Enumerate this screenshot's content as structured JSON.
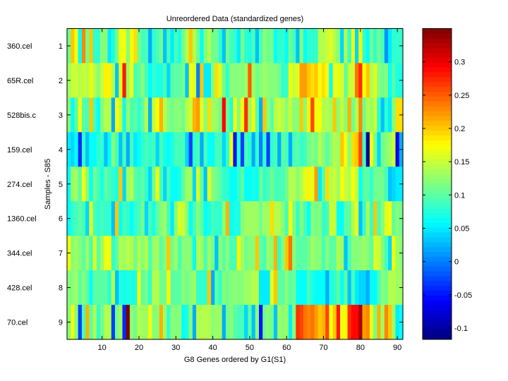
{
  "chart_data": {
    "type": "heatmap",
    "title": "Unreordered Data (standardized genes)",
    "xlabel": "G8 Genes ordered by G1(S1)",
    "ylabel": "Samples - S85",
    "colormap": "jet",
    "x_range": [
      1,
      91
    ],
    "x_ticks": [
      10,
      20,
      30,
      40,
      50,
      60,
      70,
      80,
      90
    ],
    "y_ticks": [
      1,
      2,
      3,
      4,
      5,
      6,
      7,
      8,
      9
    ],
    "row_labels": [
      "360.cel",
      "65R.cel",
      "528bis.c",
      "159.cel",
      "274.cel",
      "1360.cel",
      "344.cel",
      "428.cel",
      "70.cel"
    ],
    "color_range": [
      -0.117,
      0.35
    ],
    "colorbar_ticks": [
      "0.3",
      "0.25",
      "0.2",
      "0.15",
      "0.1",
      "0.05",
      "0",
      "-0.05",
      "-0.1"
    ],
    "colorbar_tick_values": [
      0.3,
      0.25,
      0.2,
      0.15,
      0.1,
      0.05,
      0,
      -0.05,
      -0.1
    ],
    "rows": [
      [
        0.11,
        0.2,
        0.17,
        0.06,
        0.23,
        0.11,
        0.2,
        0.08,
        0.08,
        0.12,
        0.12,
        0.05,
        0.07,
        0.11,
        0.17,
        0.17,
        0.12,
        0.17,
        0.19,
        0.11,
        0.09,
        0.09,
        0.02,
        0.08,
        0.09,
        0.11,
        0.03,
        0.09,
        0.05,
        0.09,
        0.07,
        0.11,
        0.14,
        0.2,
        0.14,
        0.11,
        0.06,
        0.12,
        0.14,
        0.11,
        0.11,
        0.08,
        0.03,
        0.11,
        0.09,
        0.08,
        0.05,
        0.11,
        0.08,
        0.07,
        0.09,
        0.03,
        0.09,
        0.12,
        0.11,
        0.11,
        0.06,
        0.08,
        0.08,
        0.06,
        0.11,
        0.09,
        0.03,
        0.12,
        0.06,
        0.08,
        0.08,
        0.08,
        0.14,
        0.14,
        0.15,
        0.16,
        0.14,
        0.12,
        0.04,
        0.14,
        0.08,
        0.17,
        0.04,
        0.17,
        0.08,
        0.06,
        0.11,
        0.08,
        0.11,
        0.09,
        0.01,
        0.05,
        0.08,
        0.08,
        0.08
      ],
      [
        0.13,
        0.15,
        0.15,
        0.14,
        0.15,
        0.14,
        0.17,
        0.14,
        0.12,
        0.15,
        0.18,
        0.18,
        0.14,
        0.03,
        0.16,
        0.28,
        0.13,
        0.17,
        0.09,
        0.1,
        0.12,
        0.09,
        0.06,
        0.08,
        0.07,
        0.07,
        0.09,
        0.04,
        0.1,
        0.1,
        0.1,
        0.11,
        0.03,
        0.17,
        0.16,
        0.0,
        0.2,
        0.05,
        0.05,
        0.12,
        0.19,
        0.16,
        0.11,
        0.08,
        0.12,
        0.12,
        0.12,
        0.12,
        0.13,
        0.25,
        0.13,
        0.11,
        0.12,
        0.13,
        0.12,
        0.12,
        0.12,
        0.11,
        0.08,
        0.08,
        0.17,
        0.15,
        0.16,
        0.22,
        0.22,
        0.2,
        0.19,
        0.2,
        0.17,
        0.19,
        0.17,
        0.06,
        0.17,
        0.16,
        0.16,
        0.1,
        0.15,
        0.15,
        0.24,
        0.27,
        0.17,
        0.2,
        0.14,
        0.16,
        0.12,
        0.11,
        0.12,
        0.06,
        0.1,
        0.07,
        0.07
      ],
      [
        0.12,
        0.06,
        0.1,
        0.17,
        0.1,
        0.09,
        0.2,
        0.09,
        0.06,
        0.12,
        0.14,
        0.14,
        0.02,
        0.17,
        0.15,
        0.06,
        0.13,
        0.09,
        0.1,
        0.08,
        0.1,
        0.14,
        0.02,
        0.15,
        0.17,
        0.21,
        0.14,
        0.12,
        0.11,
        0.12,
        0.12,
        0.11,
        0.14,
        0.15,
        0.21,
        0.22,
        0.16,
        0.12,
        0.19,
        0.13,
        0.13,
        0.11,
        0.29,
        0.11,
        0.07,
        0.17,
        0.12,
        0.17,
        0.27,
        0.13,
        0.17,
        0.1,
        0.02,
        0.2,
        0.12,
        0.1,
        0.14,
        0.15,
        0.14,
        0.12,
        0.15,
        0.12,
        0.12,
        0.2,
        0.12,
        0.18,
        0.26,
        0.17,
        0.17,
        0.14,
        0.14,
        0.13,
        0.2,
        0.12,
        0.15,
        0.12,
        0.21,
        0.11,
        0.14,
        0.23,
        0.11,
        0.14,
        0.13,
        0.15,
        0.08,
        0.03,
        0.08,
        0.05,
        0.12,
        0.19,
        0.19
      ],
      [
        0.05,
        0.04,
        0.06,
        -0.04,
        0.08,
        0.03,
        0.06,
        0.06,
        0.08,
        0.08,
        0.03,
        0.06,
        0.12,
        0.09,
        0.03,
        0.09,
        0.02,
        0.09,
        0.05,
        0.06,
        0.08,
        0.09,
        0.08,
        0.09,
        0.04,
        0.09,
        0.07,
        0.06,
        0.07,
        0.09,
        0.09,
        0.09,
        0.04,
        -0.03,
        0.08,
        0.09,
        0.02,
        0.09,
        0.06,
        0.06,
        0.09,
        0.09,
        0.04,
        0.08,
        0.17,
        -0.05,
        0.08,
        -0.03,
        0.09,
        0.08,
        0.02,
        0.08,
        0.0,
        0.08,
        -0.03,
        0.08,
        0.09,
        0.02,
        0.1,
        0.09,
        0.02,
        0.09,
        0.1,
        0.08,
        0.09,
        0.11,
        0.12,
        0.11,
        0.14,
        0.12,
        0.1,
        0.12,
        0.14,
        0.13,
        0.2,
        0.17,
        0.12,
        0.19,
        0.2,
        0.26,
        0.09,
        -0.1,
        0.17,
        0.11,
        0.04,
        0.11,
        0.12,
        0.13,
        0.15,
        -0.07,
        0.02
      ],
      [
        0.06,
        0.13,
        0.13,
        0.1,
        0.17,
        0.12,
        0.06,
        0.11,
        0.09,
        0.07,
        0.1,
        0.09,
        0.08,
        0.07,
        0.2,
        0.04,
        0.13,
        0.14,
        0.1,
        0.09,
        0.1,
        0.08,
        0.04,
        0.11,
        0.17,
        0.09,
        0.04,
        0.09,
        0.06,
        0.06,
        0.07,
        0.1,
        0.13,
        0.13,
        0.04,
        0.16,
        0.1,
        0.03,
        0.16,
        0.12,
        0.11,
        0.1,
        0.08,
        0.08,
        0.06,
        0.06,
        0.08,
        0.1,
        0.06,
        0.06,
        0.07,
        0.06,
        0.11,
        0.08,
        0.09,
        0.11,
        0.09,
        0.09,
        0.09,
        0.11,
        0.14,
        0.14,
        0.12,
        0.14,
        0.16,
        0.18,
        0.16,
        0.22,
        0.05,
        0.1,
        0.19,
        0.14,
        0.15,
        0.13,
        0.17,
        0.15,
        0.14,
        0.17,
        0.15,
        0.06,
        0.1,
        0.1,
        0.08,
        0.11,
        0.11,
        0.11,
        0.09,
        0.03,
        0.04,
        0.05,
        0.05
      ],
      [
        0.06,
        0.08,
        0.09,
        0.1,
        0.09,
        0.04,
        0.16,
        0.09,
        0.08,
        0.09,
        0.08,
        0.08,
        0.03,
        0.2,
        0.06,
        0.09,
        0.08,
        0.06,
        0.08,
        0.09,
        0.11,
        0.04,
        0.09,
        0.07,
        0.1,
        0.12,
        0.13,
        0.09,
        0.05,
        0.12,
        0.16,
        0.15,
        0.12,
        0.06,
        0.09,
        0.12,
        0.1,
        0.06,
        0.07,
        0.09,
        0.08,
        0.08,
        0.12,
        0.21,
        0.06,
        0.07,
        0.07,
        0.12,
        0.13,
        0.13,
        0.13,
        0.13,
        0.11,
        0.13,
        0.13,
        0.19,
        0.14,
        0.14,
        0.12,
        0.09,
        0.17,
        0.12,
        0.08,
        0.12,
        0.09,
        0.06,
        0.12,
        0.11,
        0.12,
        0.08,
        0.09,
        0.15,
        0.15,
        0.06,
        0.06,
        0.1,
        0.1,
        0.14,
        0.16,
        0.03,
        0.08,
        0.14,
        0.08,
        0.2,
        0.09,
        0.12,
        0.16,
        0.17,
        0.1,
        0.12,
        0.11
      ],
      [
        0.17,
        0.12,
        0.13,
        0.12,
        0.1,
        0.13,
        0.09,
        0.16,
        0.1,
        0.13,
        0.17,
        0.17,
        0.08,
        0.1,
        0.14,
        0.13,
        0.14,
        0.14,
        0.11,
        0.14,
        0.12,
        0.14,
        0.09,
        0.13,
        0.13,
        0.1,
        0.12,
        0.2,
        0.11,
        0.13,
        0.09,
        0.12,
        0.12,
        0.12,
        0.06,
        0.14,
        0.13,
        0.09,
        0.13,
        0.11,
        0.03,
        0.12,
        0.1,
        0.12,
        0.09,
        0.09,
        0.18,
        0.13,
        0.11,
        0.12,
        0.12,
        0.2,
        0.1,
        0.09,
        0.13,
        0.12,
        0.21,
        0.08,
        0.12,
        0.2,
        0.24,
        0.12,
        0.1,
        0.1,
        0.1,
        0.11,
        0.13,
        0.12,
        0.12,
        0.09,
        0.12,
        0.1,
        0.1,
        0.14,
        0.13,
        0.03,
        0.09,
        0.12,
        0.12,
        0.12,
        0.13,
        0.12,
        0.1,
        0.16,
        0.15,
        0.12,
        0.09,
        0.04,
        0.17,
        0.13,
        0.12
      ],
      [
        0.12,
        0.12,
        0.13,
        0.1,
        0.12,
        0.1,
        0.06,
        0.1,
        0.1,
        0.1,
        0.1,
        0.08,
        0.14,
        0.03,
        0.07,
        0.07,
        0.07,
        0.07,
        0.07,
        0.17,
        0.1,
        0.11,
        0.08,
        0.14,
        0.14,
        0.11,
        0.11,
        0.18,
        0.1,
        0.1,
        0.1,
        0.12,
        0.11,
        0.12,
        0.13,
        0.08,
        0.08,
        0.08,
        0.2,
        0.02,
        0.1,
        0.08,
        0.12,
        0.11,
        0.12,
        0.12,
        0.12,
        0.12,
        0.13,
        0.13,
        0.14,
        0.14,
        0.05,
        0.05,
        0.05,
        0.16,
        0.2,
        0.1,
        0.1,
        0.12,
        0.1,
        0.11,
        0.06,
        0.06,
        0.06,
        0.09,
        0.07,
        0.06,
        0.06,
        0.06,
        0.02,
        0.07,
        0.08,
        0.1,
        0.06,
        0.1,
        0.03,
        0.09,
        0.05,
        0.04,
        0.04,
        0.02,
        0.06,
        0.06,
        0.09,
        0.12,
        0.11,
        0.14,
        0.14,
        0.13,
        0.13
      ],
      [
        0.12,
        0.17,
        0.12,
        -0.03,
        0.09,
        0.21,
        0.1,
        0.14,
        0.08,
        0.11,
        0.14,
        0.14,
        -0.03,
        0.11,
        0.13,
        -0.04,
        0.35,
        0.12,
        0.11,
        0.14,
        0.13,
        0.13,
        0.17,
        0.12,
        0.12,
        0.21,
        0.13,
        0.08,
        0.12,
        0.12,
        0.12,
        0.06,
        0.07,
        0.12,
        0.02,
        0.14,
        0.14,
        0.14,
        0.14,
        0.12,
        0.13,
        0.13,
        0.02,
        0.11,
        0.12,
        0.1,
        0.09,
        0.09,
        0.04,
        0.1,
        0.03,
        0.12,
        -0.05,
        0.11,
        0.12,
        0.11,
        0.03,
        0.13,
        0.12,
        0.13,
        0.05,
        0.12,
        0.27,
        0.26,
        0.24,
        0.23,
        0.24,
        0.22,
        0.2,
        0.21,
        0.26,
        0.17,
        0.2,
        0.28,
        0.17,
        0.17,
        0.27,
        0.29,
        0.29,
        0.33,
        0.22,
        0.23,
        0.17,
        0.11,
        0.21,
        0.13,
        0.23,
        0.2,
        0.13,
        0.05,
        0.06
      ]
    ]
  }
}
